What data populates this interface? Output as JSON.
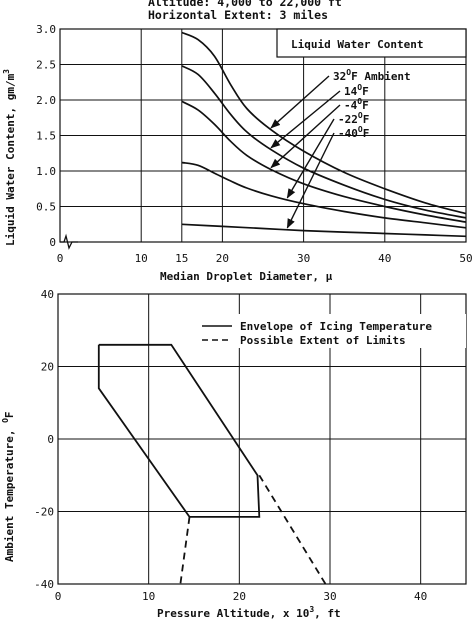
{
  "header": {
    "line1": "Altitude:  4,000 to 22,000 ft",
    "line2": "Horizontal Extent:  3 miles"
  },
  "chart_data": [
    {
      "type": "line",
      "title": "Liquid Water Content",
      "xlabel": "Median Droplet Diameter, μ",
      "ylabel_main": "Liquid Water Content, gm/m",
      "ylabel_sup": "3",
      "xlim": [
        0,
        50
      ],
      "ylim": [
        0,
        3.0
      ],
      "xticks": [
        "0",
        "10",
        "15",
        "20",
        "30",
        "40",
        "50"
      ],
      "xtick_values": [
        0,
        10,
        15,
        20,
        30,
        40,
        50
      ],
      "yticks": [
        "0",
        "0.5",
        "1.0",
        "1.5",
        "2.0",
        "2.5",
        "3.0"
      ],
      "ytick_values": [
        0,
        0.5,
        1.0,
        1.5,
        2.0,
        2.5,
        3.0
      ],
      "grid": true,
      "legend_labels": [
        {
          "main": "32",
          "sup": "O",
          "rest": "F Ambient"
        },
        {
          "main": "14",
          "sup": "O",
          "rest": "F"
        },
        {
          "main": "-4",
          "sup": "O",
          "rest": "F"
        },
        {
          "main": "-22",
          "sup": "O",
          "rest": "F"
        },
        {
          "main": "-40",
          "sup": "O",
          "rest": "F"
        }
      ],
      "series": [
        {
          "name": "32°F Ambient",
          "x": [
            15,
            17,
            19,
            21,
            23,
            26,
            30,
            35,
            40,
            45,
            50
          ],
          "y": [
            2.95,
            2.85,
            2.62,
            2.22,
            1.88,
            1.58,
            1.28,
            0.98,
            0.75,
            0.55,
            0.4
          ]
        },
        {
          "name": "14°F",
          "x": [
            15,
            17,
            19,
            21,
            23,
            26,
            30,
            35,
            40,
            45,
            50
          ],
          "y": [
            2.48,
            2.36,
            2.1,
            1.8,
            1.55,
            1.3,
            1.04,
            0.8,
            0.6,
            0.45,
            0.34
          ]
        },
        {
          "name": "-4°F",
          "x": [
            15,
            17,
            19,
            21,
            23,
            26,
            30,
            35,
            40,
            45,
            50
          ],
          "y": [
            1.98,
            1.86,
            1.66,
            1.42,
            1.22,
            1.02,
            0.82,
            0.64,
            0.5,
            0.38,
            0.28
          ]
        },
        {
          "name": "-22°F",
          "x": [
            15,
            17,
            19,
            21,
            23,
            26,
            30,
            35,
            40,
            45,
            50
          ],
          "y": [
            1.12,
            1.08,
            0.97,
            0.86,
            0.76,
            0.65,
            0.54,
            0.43,
            0.34,
            0.27,
            0.2
          ]
        },
        {
          "name": "-40°F",
          "x": [
            15,
            20,
            25,
            30,
            35,
            40,
            45,
            50
          ],
          "y": [
            0.25,
            0.22,
            0.19,
            0.16,
            0.14,
            0.12,
            0.1,
            0.08
          ]
        }
      ]
    },
    {
      "type": "line",
      "xlabel_main": "Pressure Altitude, x 10",
      "xlabel_sup": "3",
      "xlabel_rest": ", ft",
      "ylabel_main": "Ambient Temperature, ",
      "ylabel_sup": "O",
      "ylabel_rest": "F",
      "xlim": [
        0,
        45
      ],
      "ylim": [
        -40,
        40
      ],
      "xticks": [
        "0",
        "10",
        "20",
        "30",
        "40"
      ],
      "xtick_values": [
        0,
        10,
        20,
        30,
        40
      ],
      "yticks": [
        "-40",
        "-20",
        "0",
        "20",
        "40"
      ],
      "ytick_values": [
        -40,
        -20,
        0,
        20,
        40
      ],
      "grid": true,
      "legend_position": "top-right",
      "series": [
        {
          "name": "Envelope of Icing Temperature",
          "style": "solid",
          "x": [
            4.5,
            12.5,
            22,
            22.2,
            14.5,
            4.5,
            4.5
          ],
          "y": [
            26,
            26,
            -10,
            -21.5,
            -21.5,
            14,
            26
          ]
        },
        {
          "name": "Possible Extent of Limits",
          "style": "dashed",
          "x": [
            14.5,
            13.5
          ],
          "y": [
            -21.5,
            -40
          ]
        },
        {
          "name": "Possible Extent of Limits",
          "style": "dashed",
          "x": [
            22.2,
            29.5
          ],
          "y": [
            -10,
            -40
          ]
        }
      ]
    }
  ]
}
